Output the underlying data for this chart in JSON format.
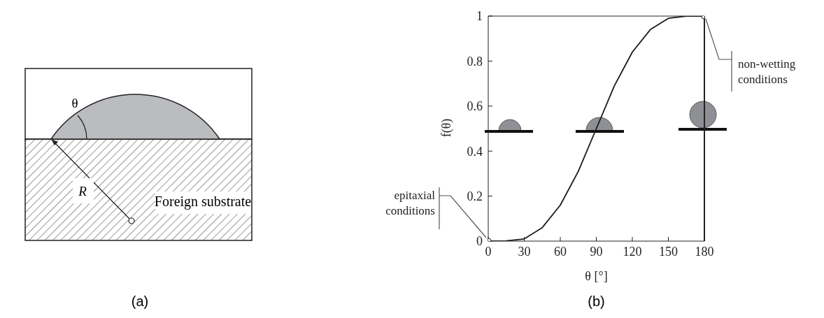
{
  "chart_data": [
    {
      "type": "other",
      "annotations": [
        "θ",
        "R",
        "Foreign substrate",
        "(a)"
      ]
    },
    {
      "type": "line",
      "xlabel": "θ [°]",
      "ylabel": "f(θ)",
      "xlim": [
        0,
        180
      ],
      "ylim": [
        0,
        1
      ],
      "xticks": [
        0,
        30,
        60,
        90,
        120,
        150,
        180
      ],
      "yticks": [
        0,
        0.2,
        0.4,
        0.6,
        0.8,
        1
      ],
      "grid": false,
      "series": [
        {
          "type": "line",
          "color": "#1a1a1a",
          "marker": "none",
          "x": [
            0,
            15,
            30,
            45,
            60,
            75,
            90,
            105,
            120,
            135,
            150,
            165,
            180
          ],
          "values": [
            0,
            0.001,
            0.01,
            0.06,
            0.16,
            0.31,
            0.5,
            0.69,
            0.84,
            0.94,
            0.99,
            1.0,
            1
          ]
        },
        {
          "type": "scatter",
          "color": "#1a1a1a",
          "marker": "circle",
          "x": [
            0,
            180
          ],
          "values": [
            0,
            1
          ]
        }
      ],
      "annotations": [
        {
          "text": "epitaxial conditions",
          "x": 0,
          "y": 0
        },
        {
          "text": "non-wetting conditions",
          "x": 180,
          "y": 1
        },
        "(b)"
      ]
    }
  ]
}
